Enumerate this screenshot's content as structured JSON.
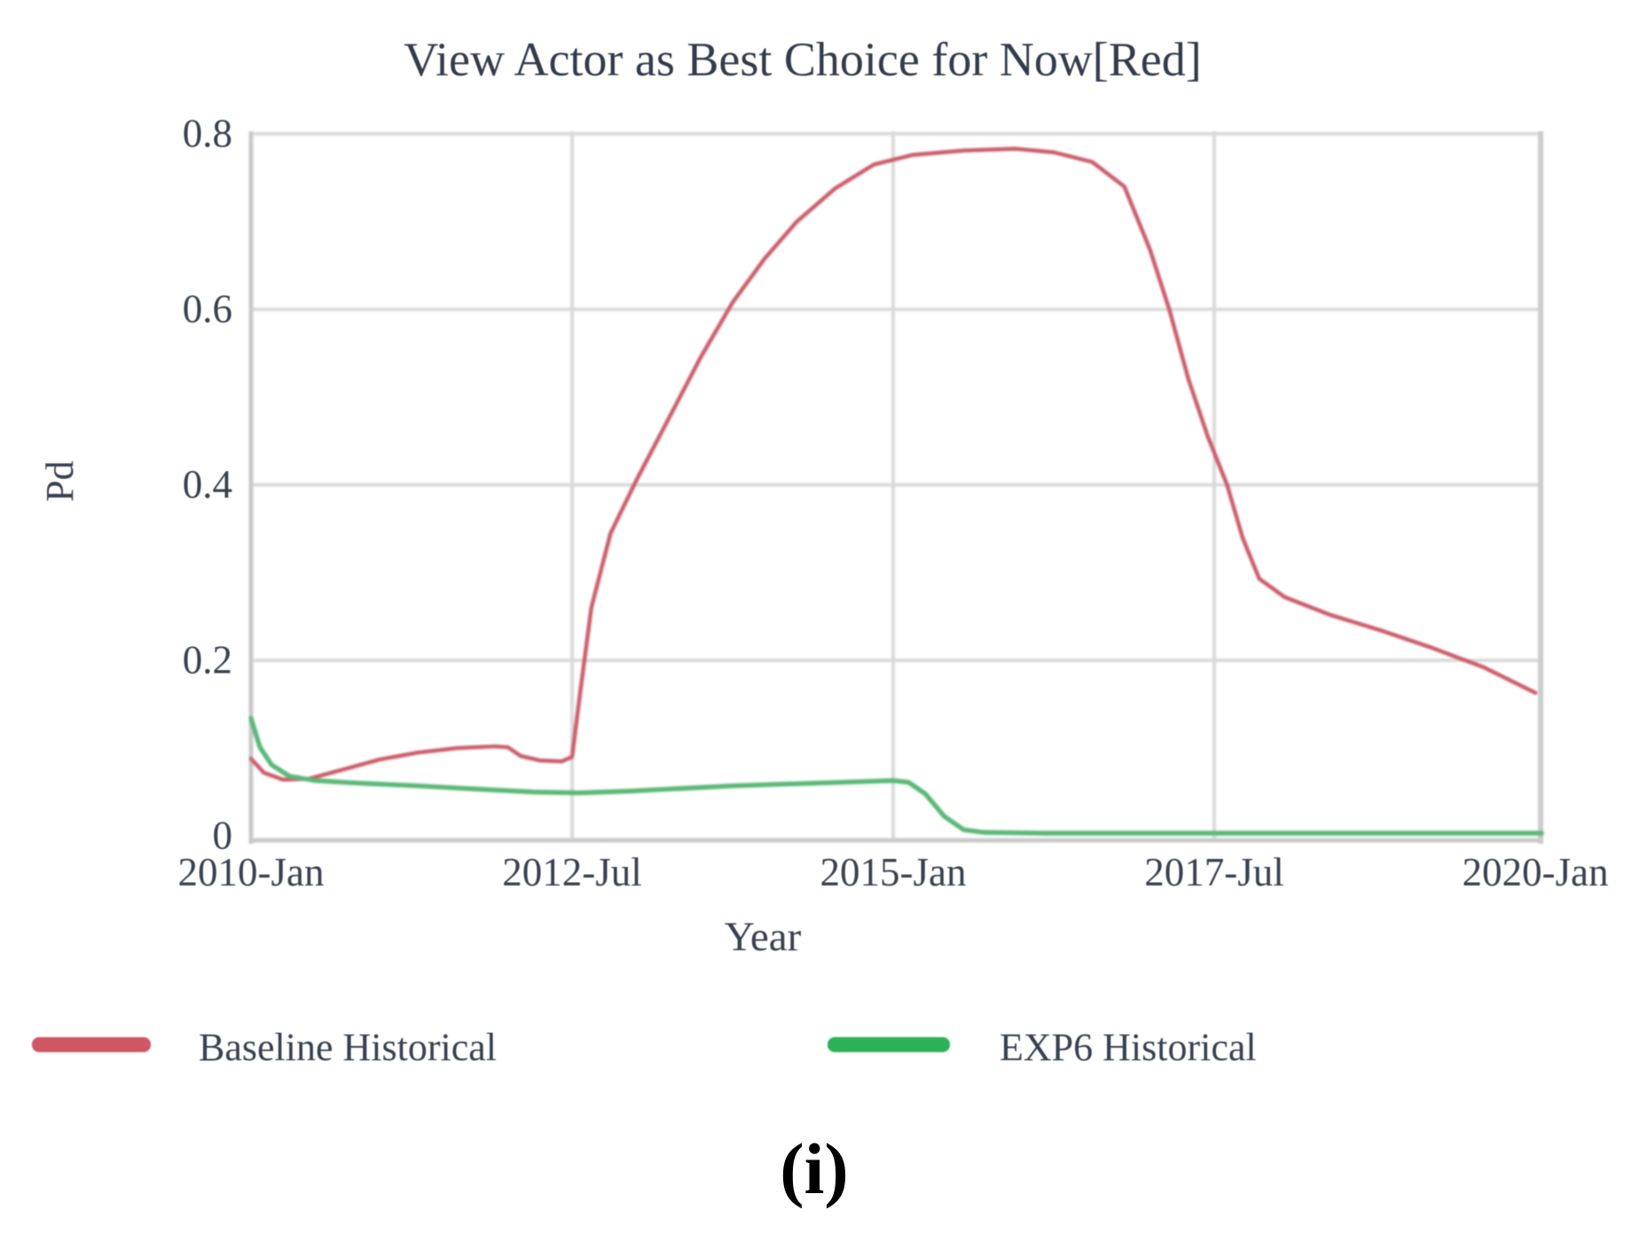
{
  "figure": {
    "caption": "(i)"
  },
  "chart_data": {
    "type": "line",
    "title": "View Actor as Best Choice for Now[Red]",
    "xlabel": "Year",
    "ylabel": "Pd",
    "xlim": [
      2010.0,
      2020.08
    ],
    "ylim": [
      0,
      0.8
    ],
    "grid": true,
    "legend_position": "bottom",
    "x_tick_labels": [
      "2010-Jan",
      "2012-Jul",
      "2015-Jan",
      "2017-Jul",
      "2020-Jan"
    ],
    "x_tick_years": [
      2010.0,
      2012.5,
      2015.0,
      2017.5,
      2020.0
    ],
    "y_tick_labels": [
      "0",
      "0.2",
      "0.4",
      "0.6",
      "0.8"
    ],
    "y_tick_values": [
      0,
      0.2,
      0.4,
      0.6,
      0.8
    ],
    "x_gridline_years": [
      2012.5,
      2015.0,
      2017.5
    ],
    "y_gridline_values": [
      0.2,
      0.4,
      0.6,
      0.8
    ],
    "series": [
      {
        "name": "Baseline Historical",
        "color": "#cb5f6c",
        "points": [
          [
            2010.0,
            0.088
          ],
          [
            2010.1,
            0.072
          ],
          [
            2010.25,
            0.064
          ],
          [
            2010.45,
            0.065
          ],
          [
            2010.7,
            0.075
          ],
          [
            2011.0,
            0.087
          ],
          [
            2011.3,
            0.095
          ],
          [
            2011.6,
            0.1
          ],
          [
            2011.9,
            0.102
          ],
          [
            2012.0,
            0.101
          ],
          [
            2012.1,
            0.091
          ],
          [
            2012.25,
            0.086
          ],
          [
            2012.42,
            0.085
          ],
          [
            2012.5,
            0.09
          ],
          [
            2012.56,
            0.16
          ],
          [
            2012.65,
            0.26
          ],
          [
            2012.8,
            0.345
          ],
          [
            2013.0,
            0.405
          ],
          [
            2013.25,
            0.475
          ],
          [
            2013.5,
            0.545
          ],
          [
            2013.75,
            0.608
          ],
          [
            2014.0,
            0.658
          ],
          [
            2014.25,
            0.7
          ],
          [
            2014.55,
            0.738
          ],
          [
            2014.85,
            0.765
          ],
          [
            2015.15,
            0.776
          ],
          [
            2015.55,
            0.781
          ],
          [
            2015.95,
            0.783
          ],
          [
            2016.25,
            0.779
          ],
          [
            2016.55,
            0.768
          ],
          [
            2016.8,
            0.74
          ],
          [
            2017.0,
            0.668
          ],
          [
            2017.15,
            0.6
          ],
          [
            2017.3,
            0.52
          ],
          [
            2017.45,
            0.455
          ],
          [
            2017.6,
            0.4
          ],
          [
            2017.72,
            0.34
          ],
          [
            2017.85,
            0.293
          ],
          [
            2018.05,
            0.272
          ],
          [
            2018.4,
            0.252
          ],
          [
            2018.8,
            0.234
          ],
          [
            2019.2,
            0.214
          ],
          [
            2019.6,
            0.192
          ],
          [
            2020.0,
            0.163
          ]
        ]
      },
      {
        "name": "EXP6 Historical",
        "color": "#5cb878",
        "points": [
          [
            2010.0,
            0.134
          ],
          [
            2010.07,
            0.101
          ],
          [
            2010.16,
            0.081
          ],
          [
            2010.3,
            0.068
          ],
          [
            2010.5,
            0.063
          ],
          [
            2010.85,
            0.06
          ],
          [
            2011.3,
            0.057
          ],
          [
            2011.8,
            0.053
          ],
          [
            2012.2,
            0.05
          ],
          [
            2012.55,
            0.049
          ],
          [
            2012.95,
            0.051
          ],
          [
            2013.35,
            0.054
          ],
          [
            2013.75,
            0.057
          ],
          [
            2014.15,
            0.059
          ],
          [
            2014.6,
            0.061
          ],
          [
            2015.0,
            0.063
          ],
          [
            2015.12,
            0.061
          ],
          [
            2015.25,
            0.048
          ],
          [
            2015.4,
            0.022
          ],
          [
            2015.55,
            0.007
          ],
          [
            2015.7,
            0.004
          ],
          [
            2016.2,
            0.003
          ],
          [
            2017.0,
            0.003
          ],
          [
            2017.8,
            0.003
          ],
          [
            2018.6,
            0.003
          ],
          [
            2019.4,
            0.003
          ],
          [
            2020.05,
            0.003
          ]
        ]
      }
    ]
  },
  "legend": {
    "swatch_colors": {
      "baseline": "#d05663",
      "exp6": "#2bb257"
    }
  }
}
